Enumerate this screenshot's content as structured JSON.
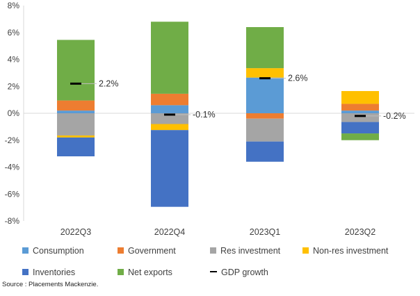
{
  "chart_data": {
    "type": "bar",
    "stacked": true,
    "categories": [
      "2022Q3",
      "2022Q4",
      "2023Q1",
      "2023Q2"
    ],
    "ylim": [
      -8,
      8
    ],
    "yticks": [
      -8,
      -6,
      -4,
      -2,
      0,
      2,
      4,
      6,
      8
    ],
    "tick_suffix": "%",
    "grid": false,
    "legend_position": "bottom",
    "series": [
      {
        "name": "Consumption",
        "color": "#5B9BD5",
        "values": [
          0.2,
          0.6,
          2.65,
          0.2
        ]
      },
      {
        "name": "Government",
        "color": "#ED7D31",
        "values": [
          0.75,
          0.85,
          -0.4,
          0.5
        ]
      },
      {
        "name": "Res investment",
        "color": "#A5A5A5",
        "values": [
          -1.65,
          -0.8,
          -1.7,
          -0.65
        ]
      },
      {
        "name": "Non-res investment",
        "color": "#FFC000",
        "values": [
          -0.15,
          -0.45,
          0.7,
          0.95
        ]
      },
      {
        "name": "Inventories",
        "color": "#4472C4",
        "values": [
          -1.4,
          -5.7,
          -1.5,
          -0.85
        ]
      },
      {
        "name": "Net exports",
        "color": "#70AD47",
        "values": [
          4.5,
          5.35,
          3.05,
          -0.5
        ]
      }
    ],
    "gdp_growth": {
      "name": "GDP growth",
      "color": "#000000",
      "values": [
        2.2,
        -0.1,
        2.6,
        -0.2
      ]
    },
    "data_labels": [
      "2.2%",
      "-0.1%",
      "2.6%",
      "-0.2%"
    ]
  },
  "source": "Source : Placements Mackenzie."
}
